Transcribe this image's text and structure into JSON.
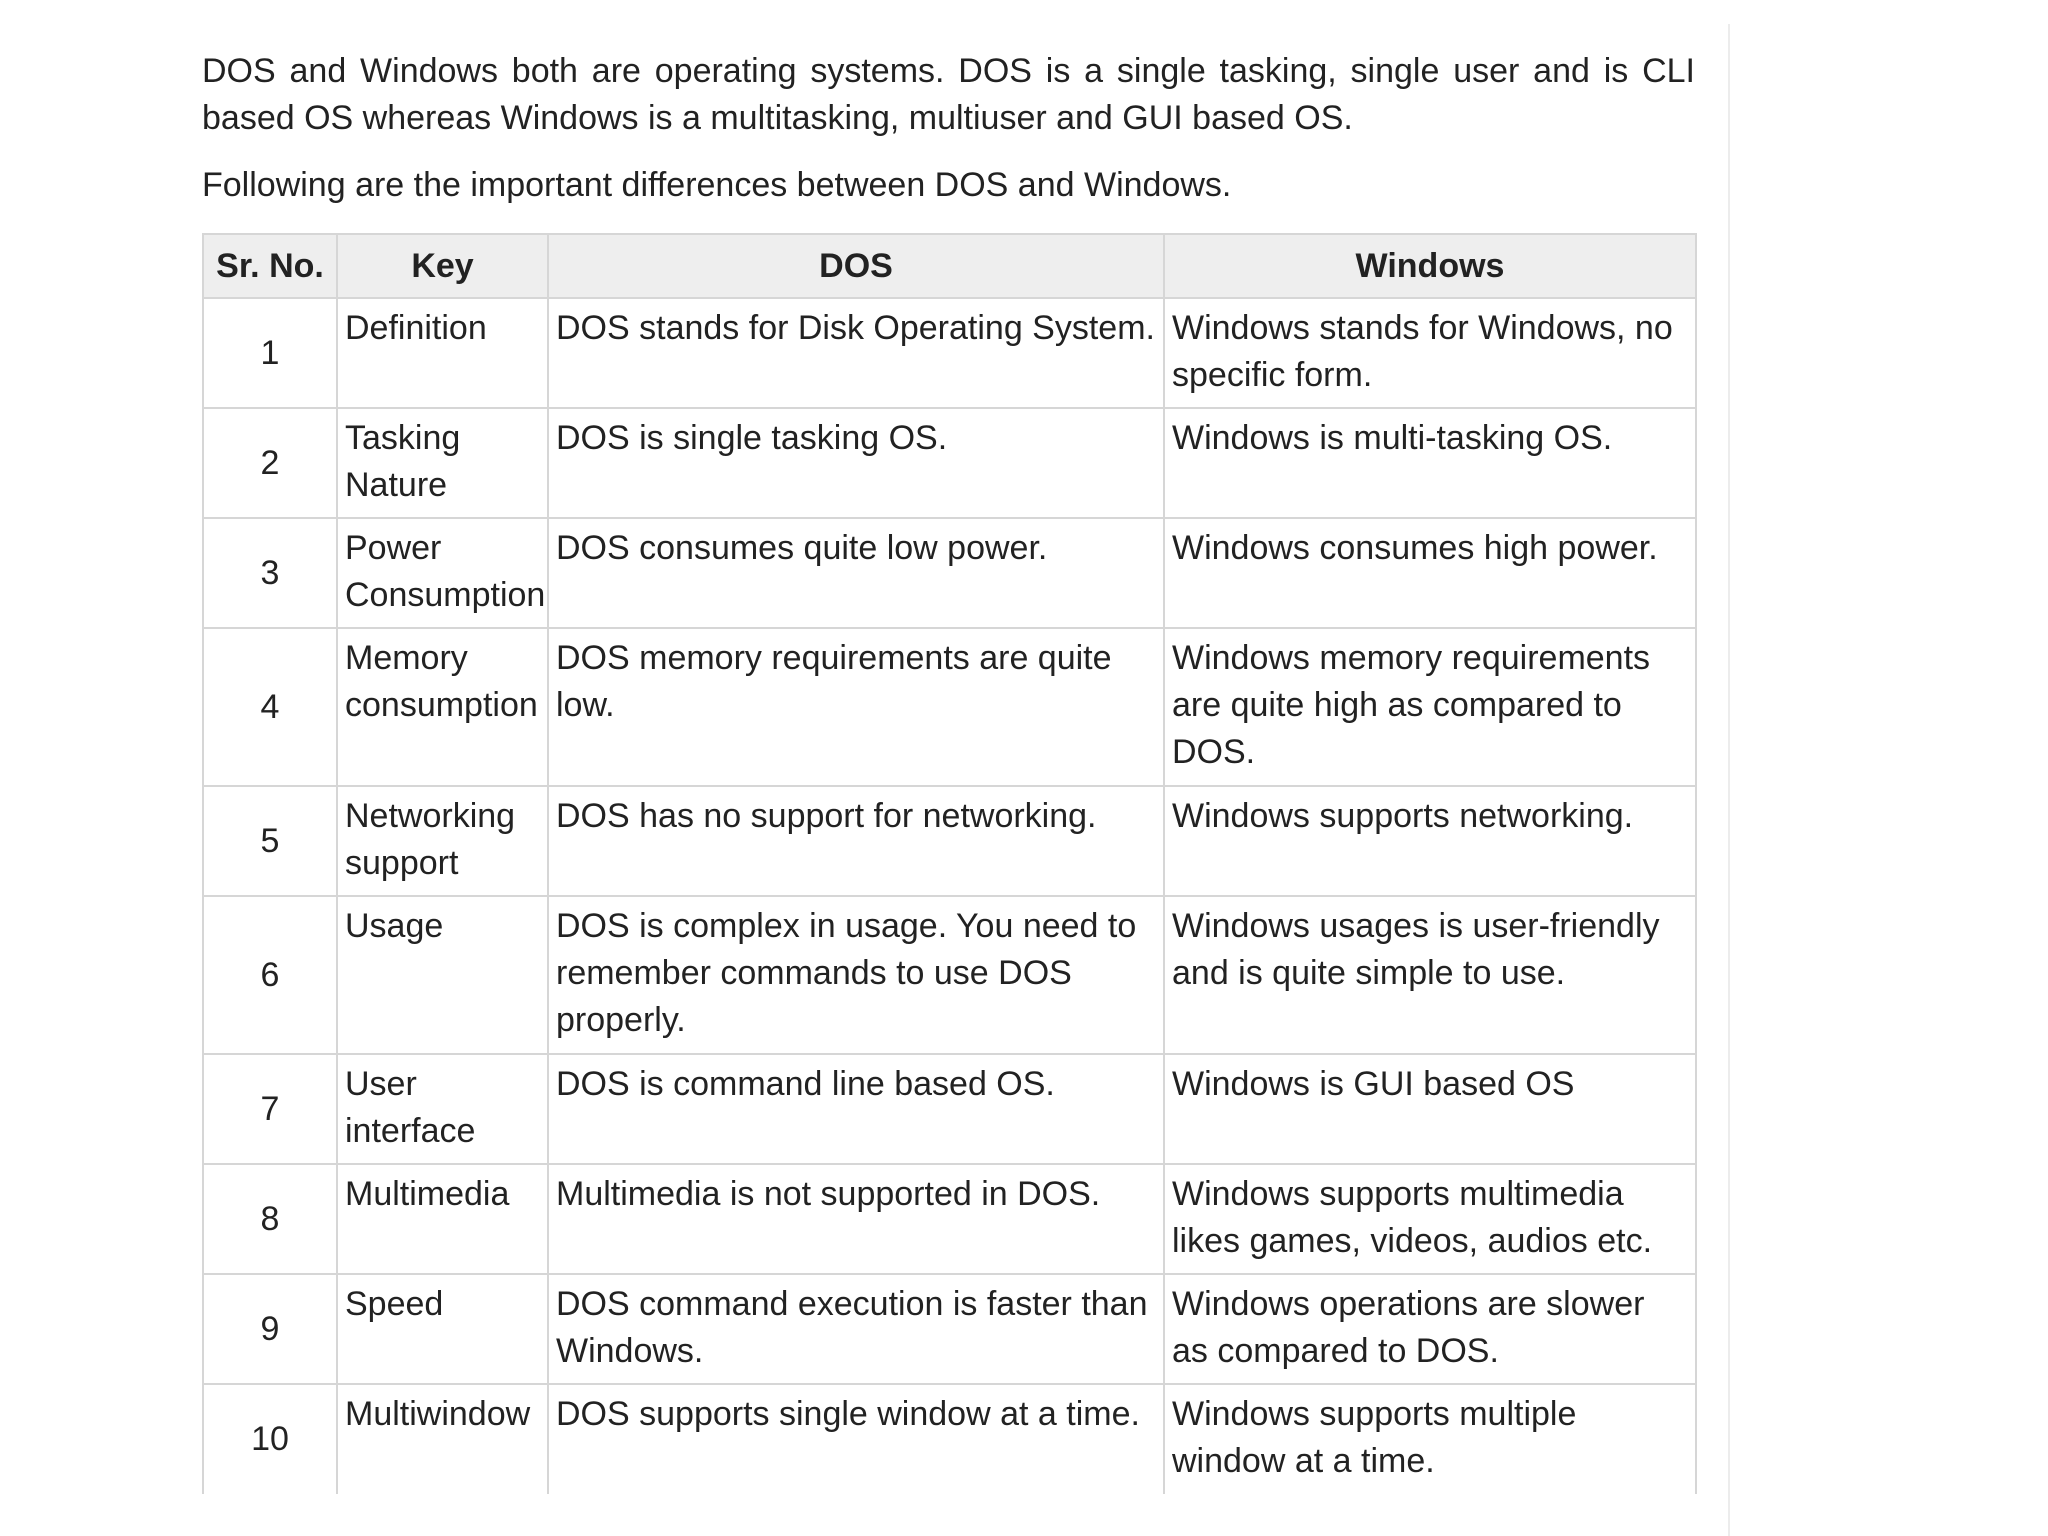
{
  "intro": "DOS and Windows both are operating systems. DOS is a single tasking, single user and is CLI based OS whereas Windows is a multitasking, multiuser and GUI based OS.",
  "lead": "Following are the important differences between DOS and Windows.",
  "table": {
    "headers": [
      "Sr. No.",
      "Key",
      "DOS",
      "Windows"
    ],
    "rows": [
      {
        "num": "1",
        "key": "Definition",
        "dos": "DOS stands for Disk Operating System.",
        "windows": "Windows stands for Windows, no specific form."
      },
      {
        "num": "2",
        "key": "Tasking Nature",
        "dos": "DOS is single tasking OS.",
        "windows": "Windows is multi-tasking OS."
      },
      {
        "num": "3",
        "key": "Power Consumption",
        "dos": "DOS consumes quite low power.",
        "windows": "Windows consumes high power."
      },
      {
        "num": "4",
        "key": "Memory consumption",
        "dos": "DOS memory requirements are quite low.",
        "windows": "Windows memory requirements are quite high as compared to DOS."
      },
      {
        "num": "5",
        "key": "Networking support",
        "dos": "DOS has no support for networking.",
        "windows": "Windows supports networking."
      },
      {
        "num": "6",
        "key": "Usage",
        "dos": "DOS is complex in usage. You need to remember commands to use DOS properly.",
        "windows": "Windows usages is user-friendly and is quite simple to use."
      },
      {
        "num": "7",
        "key": "User interface",
        "dos": "DOS is command line based OS.",
        "windows": "Windows is GUI based OS"
      },
      {
        "num": "8",
        "key": "Multimedia",
        "dos": "Multimedia is not supported in DOS.",
        "windows": "Windows supports multimedia likes games, videos, audios etc."
      },
      {
        "num": "9",
        "key": "Speed",
        "dos": "DOS command execution is faster than Windows.",
        "windows": "Windows operations are slower as compared to DOS."
      },
      {
        "num": "10",
        "key": "Multiwindow",
        "dos": "DOS supports single window at a time.",
        "windows": "Windows supports multiple window at a time."
      }
    ]
  }
}
